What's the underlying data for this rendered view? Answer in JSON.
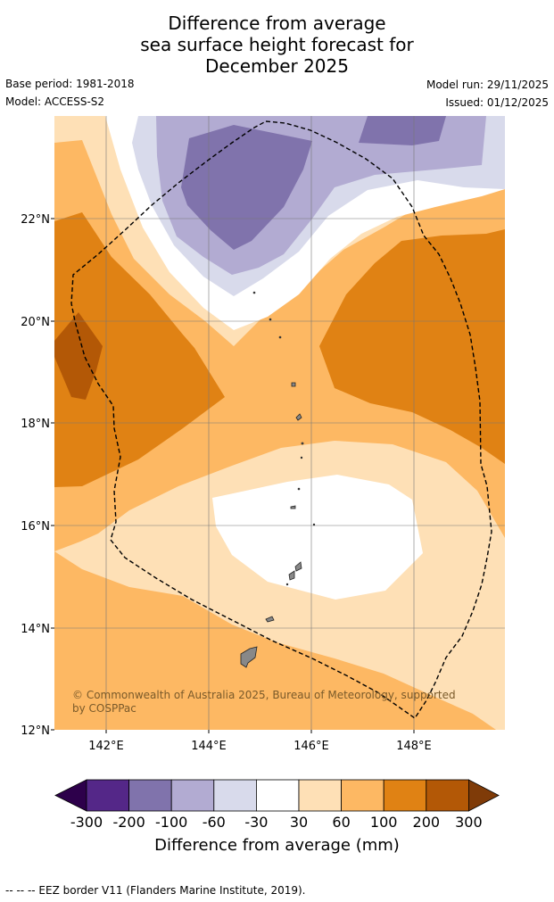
{
  "title": {
    "line1": "Difference from average",
    "line2": "sea surface height forecast for",
    "line3": "December 2025"
  },
  "meta": {
    "base_period": "Base period: 1981-2018",
    "model": "Model: ACCESS-S2",
    "model_run": "Model run: 29/11/2025",
    "issued": "Issued: 01/12/2025"
  },
  "map": {
    "lat_labels": [
      "22°N",
      "20°N",
      "18°N",
      "16°N",
      "14°N",
      "12°N"
    ],
    "lon_labels": [
      "142°E",
      "144°E",
      "146°E",
      "148°E"
    ],
    "copyright": "© Commonwealth of Australia 2025, Bureau of Meteorology, supported by COSPPac"
  },
  "colorbar": {
    "labels": [
      "-300",
      "-200",
      "-100",
      "-60",
      "-30",
      "30",
      "60",
      "100",
      "200",
      "300"
    ],
    "title": "Difference from average (mm)",
    "colors": {
      "lt_-300": "#2d004b",
      "-300_-200": "#542788",
      "-200_-100": "#8073ac",
      "-100_-60": "#b2abd2",
      "-60_-30": "#d8daeb",
      "-30_30": "#ffffff",
      "30_60": "#fee0b6",
      "60_100": "#fdb863",
      "100_200": "#e08214",
      "200_300": "#b35806",
      "gt_300": "#7f3b08"
    }
  },
  "footer": "--  --  -- EEZ border V11 (Flanders Marine Institute, 2019)."
}
